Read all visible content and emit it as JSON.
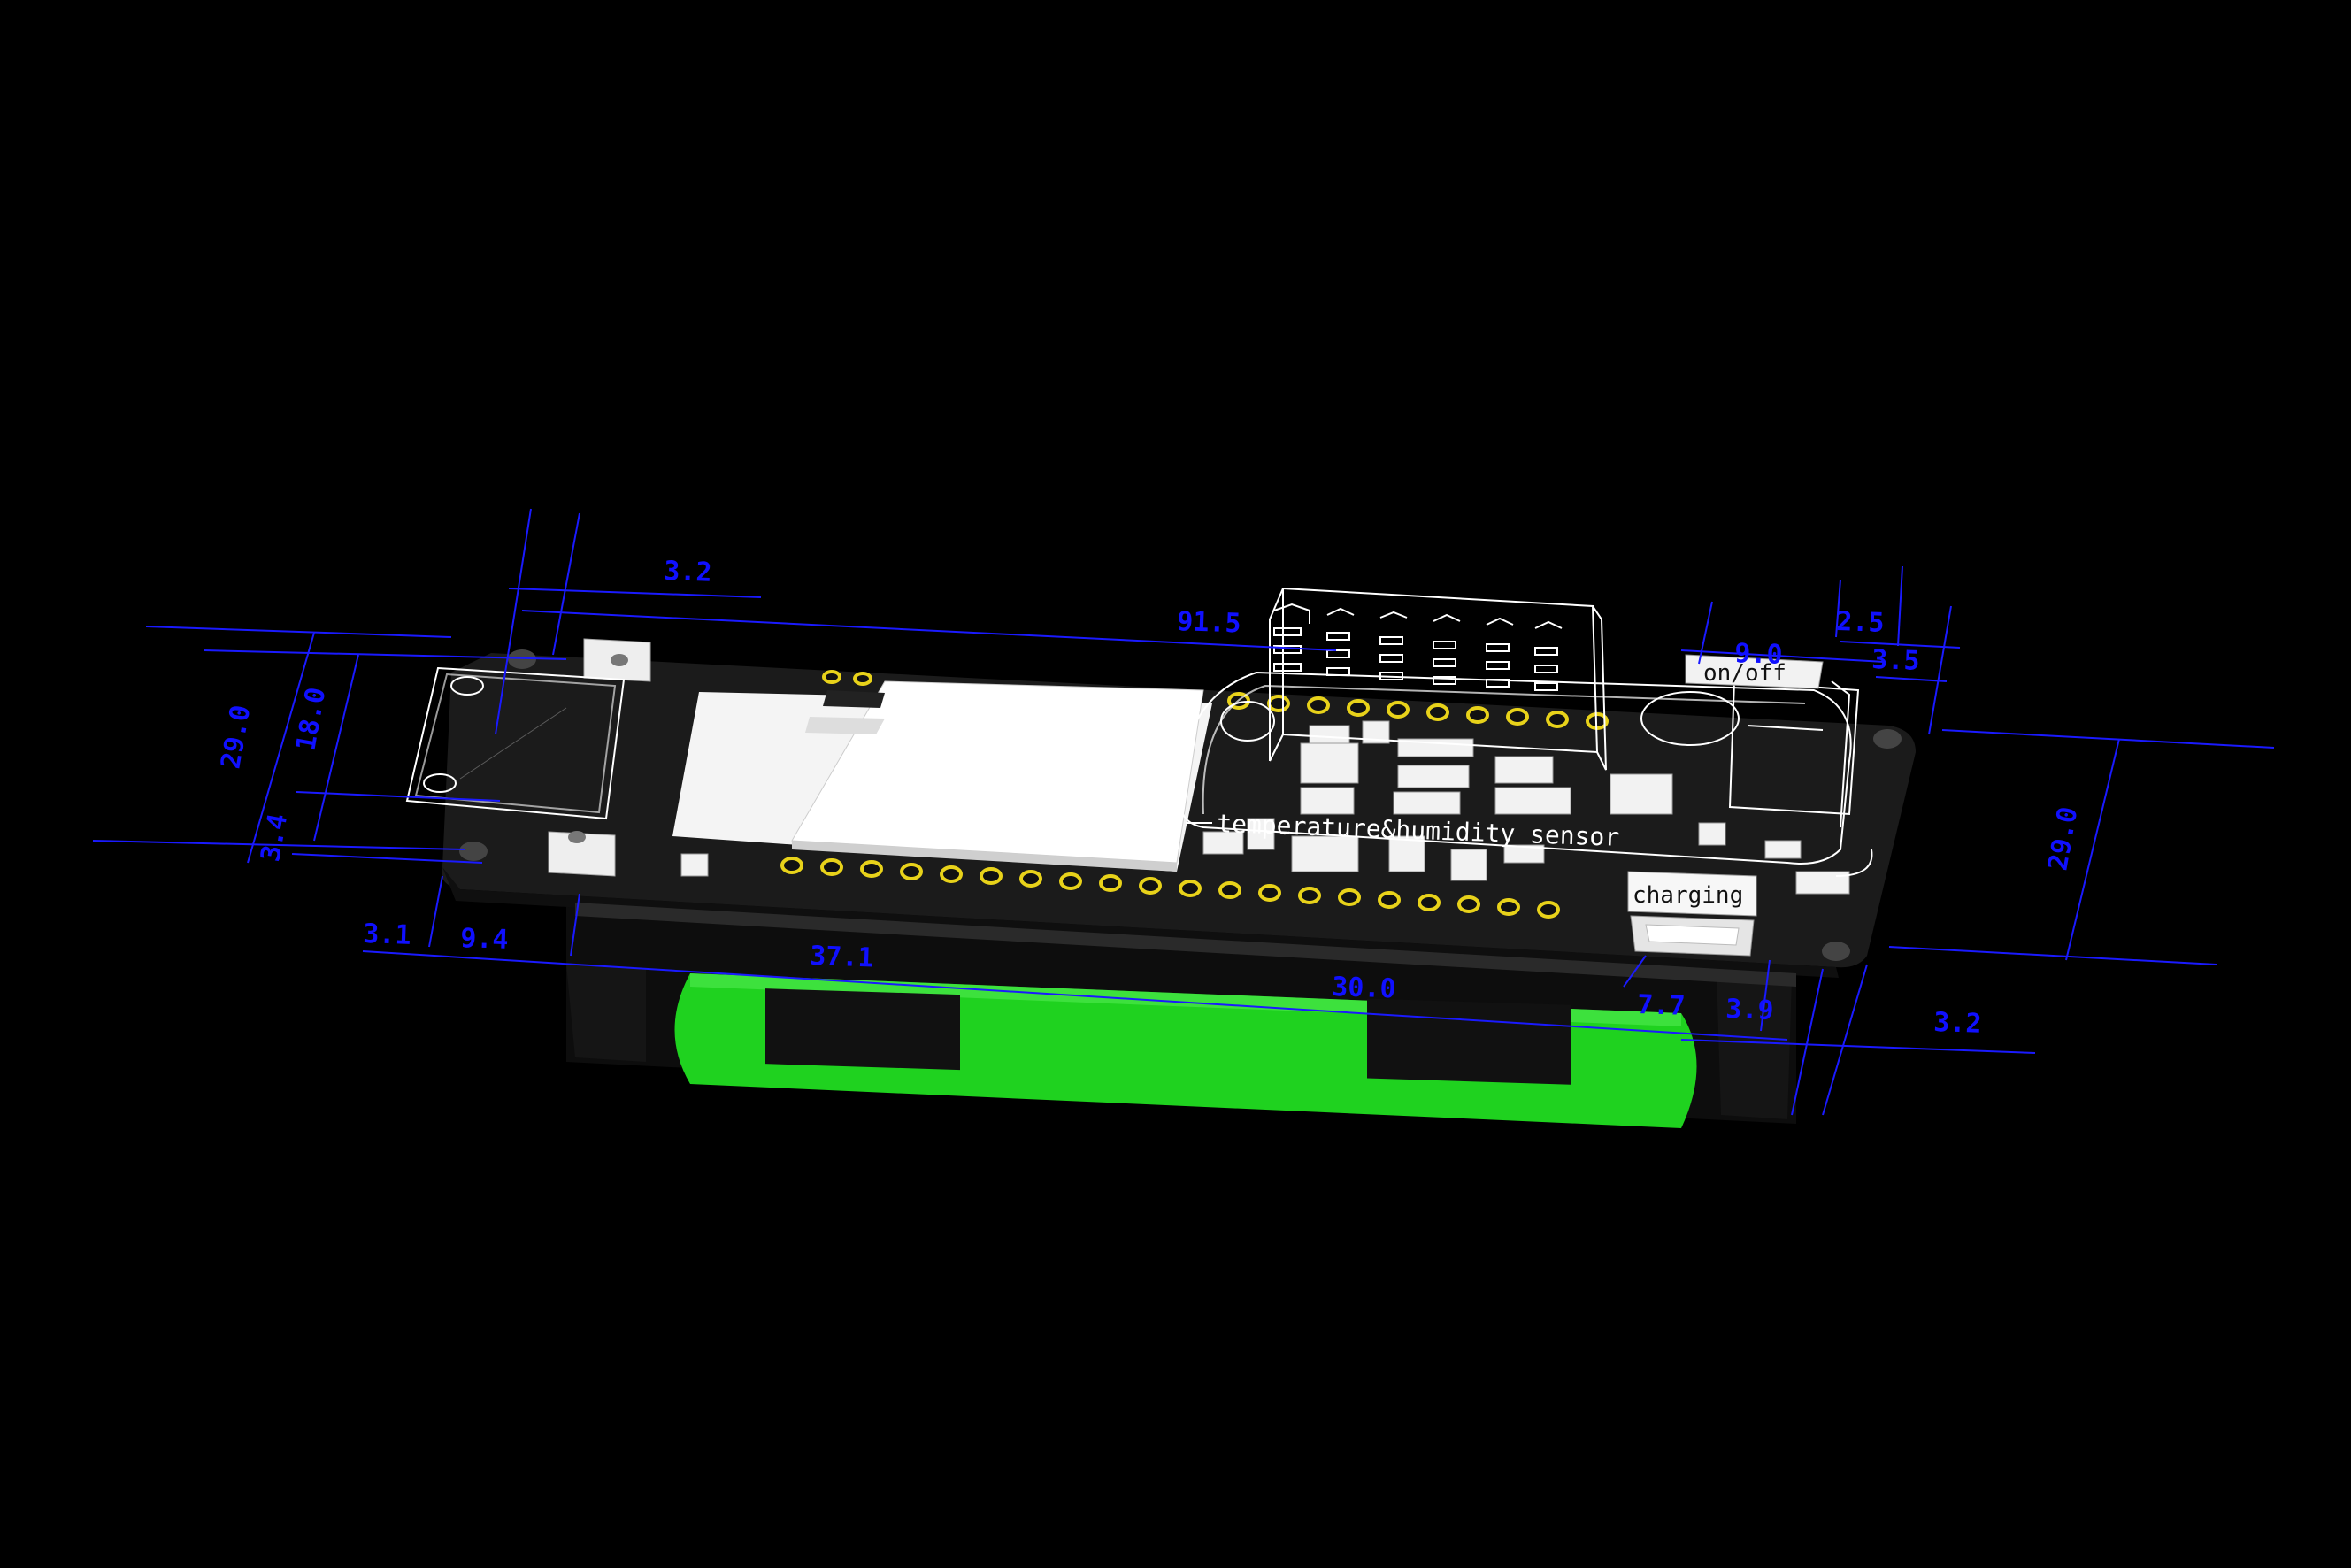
{
  "labels": {
    "on_off": "on/off",
    "charging": "charging",
    "sensor": "temperature&humidity sensor"
  },
  "dimensions": {
    "d_3_2_top": "3.2",
    "d_91_5": "91.5",
    "d_9_0": "9.0",
    "d_2_5": "2.5",
    "d_3_5": "3.5",
    "d_29_0_left": "29.0",
    "d_18_0": "18.0",
    "d_3_4": "3.4",
    "d_3_1": "3.1",
    "d_9_4": "9.4",
    "d_37_1": "37.1",
    "d_30_0": "30.0",
    "d_7_7": "7.7",
    "d_3_9": "3.9",
    "d_3_2_right": "3.2",
    "d_29_0_right": "29.0"
  },
  "colors": {
    "background": "#000000",
    "dimension": "#1010ff",
    "battery": "#1fd21f",
    "pcb": "#1b1b1b",
    "pad_ring": "#e8d21a"
  }
}
